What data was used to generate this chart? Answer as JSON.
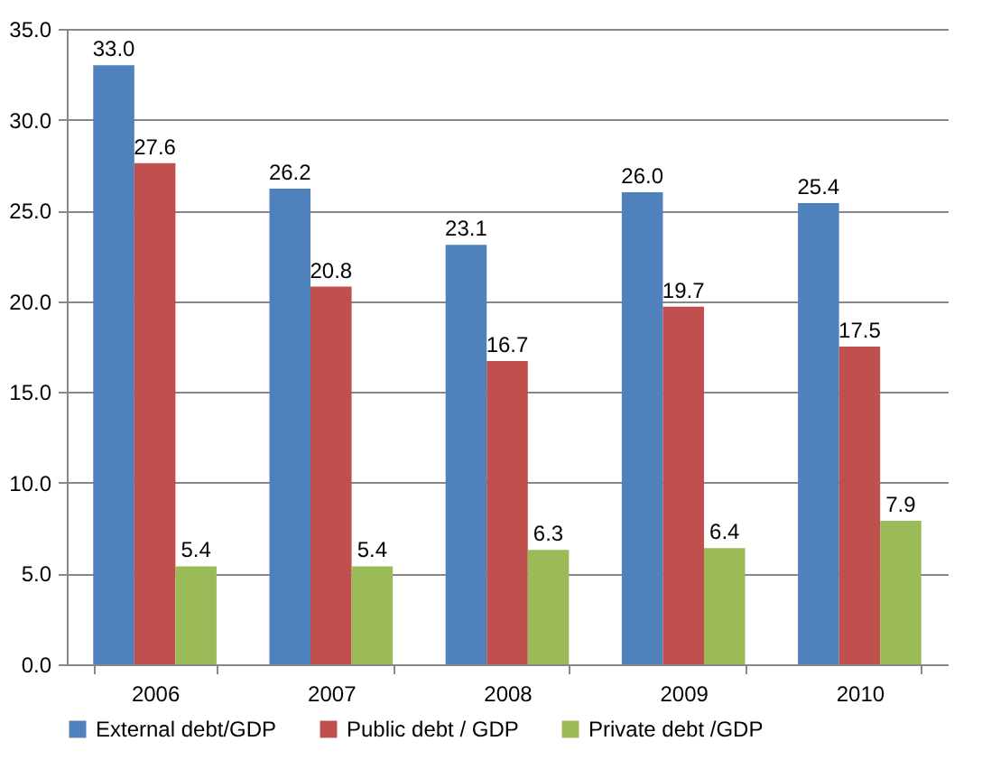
{
  "chart_data": {
    "type": "bar",
    "categories": [
      "2006",
      "2007",
      "2008",
      "2009",
      "2010"
    ],
    "series": [
      {
        "name": "External debt/GDP",
        "color": "#4f81bd",
        "values": [
          33.0,
          26.2,
          23.1,
          26.0,
          25.4
        ],
        "value_labels": [
          "33.0",
          "26.2",
          "23.1",
          "26.0",
          "25.4"
        ]
      },
      {
        "name": "Public debt / GDP",
        "color": "#c0504d",
        "values": [
          27.6,
          20.8,
          16.7,
          19.7,
          17.5
        ],
        "value_labels": [
          "27.6",
          "20.8",
          "16.7",
          "19.7",
          "17.5"
        ]
      },
      {
        "name": "Private debt /GDP",
        "color": "#9bbb59",
        "values": [
          5.4,
          5.4,
          6.3,
          6.4,
          7.9
        ],
        "value_labels": [
          "5.4",
          "5.4",
          "6.3",
          "6.4",
          "7.9"
        ]
      }
    ],
    "ylim": [
      0,
      35
    ],
    "yticks": [
      {
        "value": 0,
        "label": "0.0"
      },
      {
        "value": 5,
        "label": "5.0"
      },
      {
        "value": 10,
        "label": "10.0"
      },
      {
        "value": 15,
        "label": "15.0"
      },
      {
        "value": 20,
        "label": "20.0"
      },
      {
        "value": 25,
        "label": "25.0"
      },
      {
        "value": 30,
        "label": "30.0"
      },
      {
        "value": 35,
        "label": "35.0"
      }
    ],
    "grid": "y",
    "legend": "bottom"
  }
}
